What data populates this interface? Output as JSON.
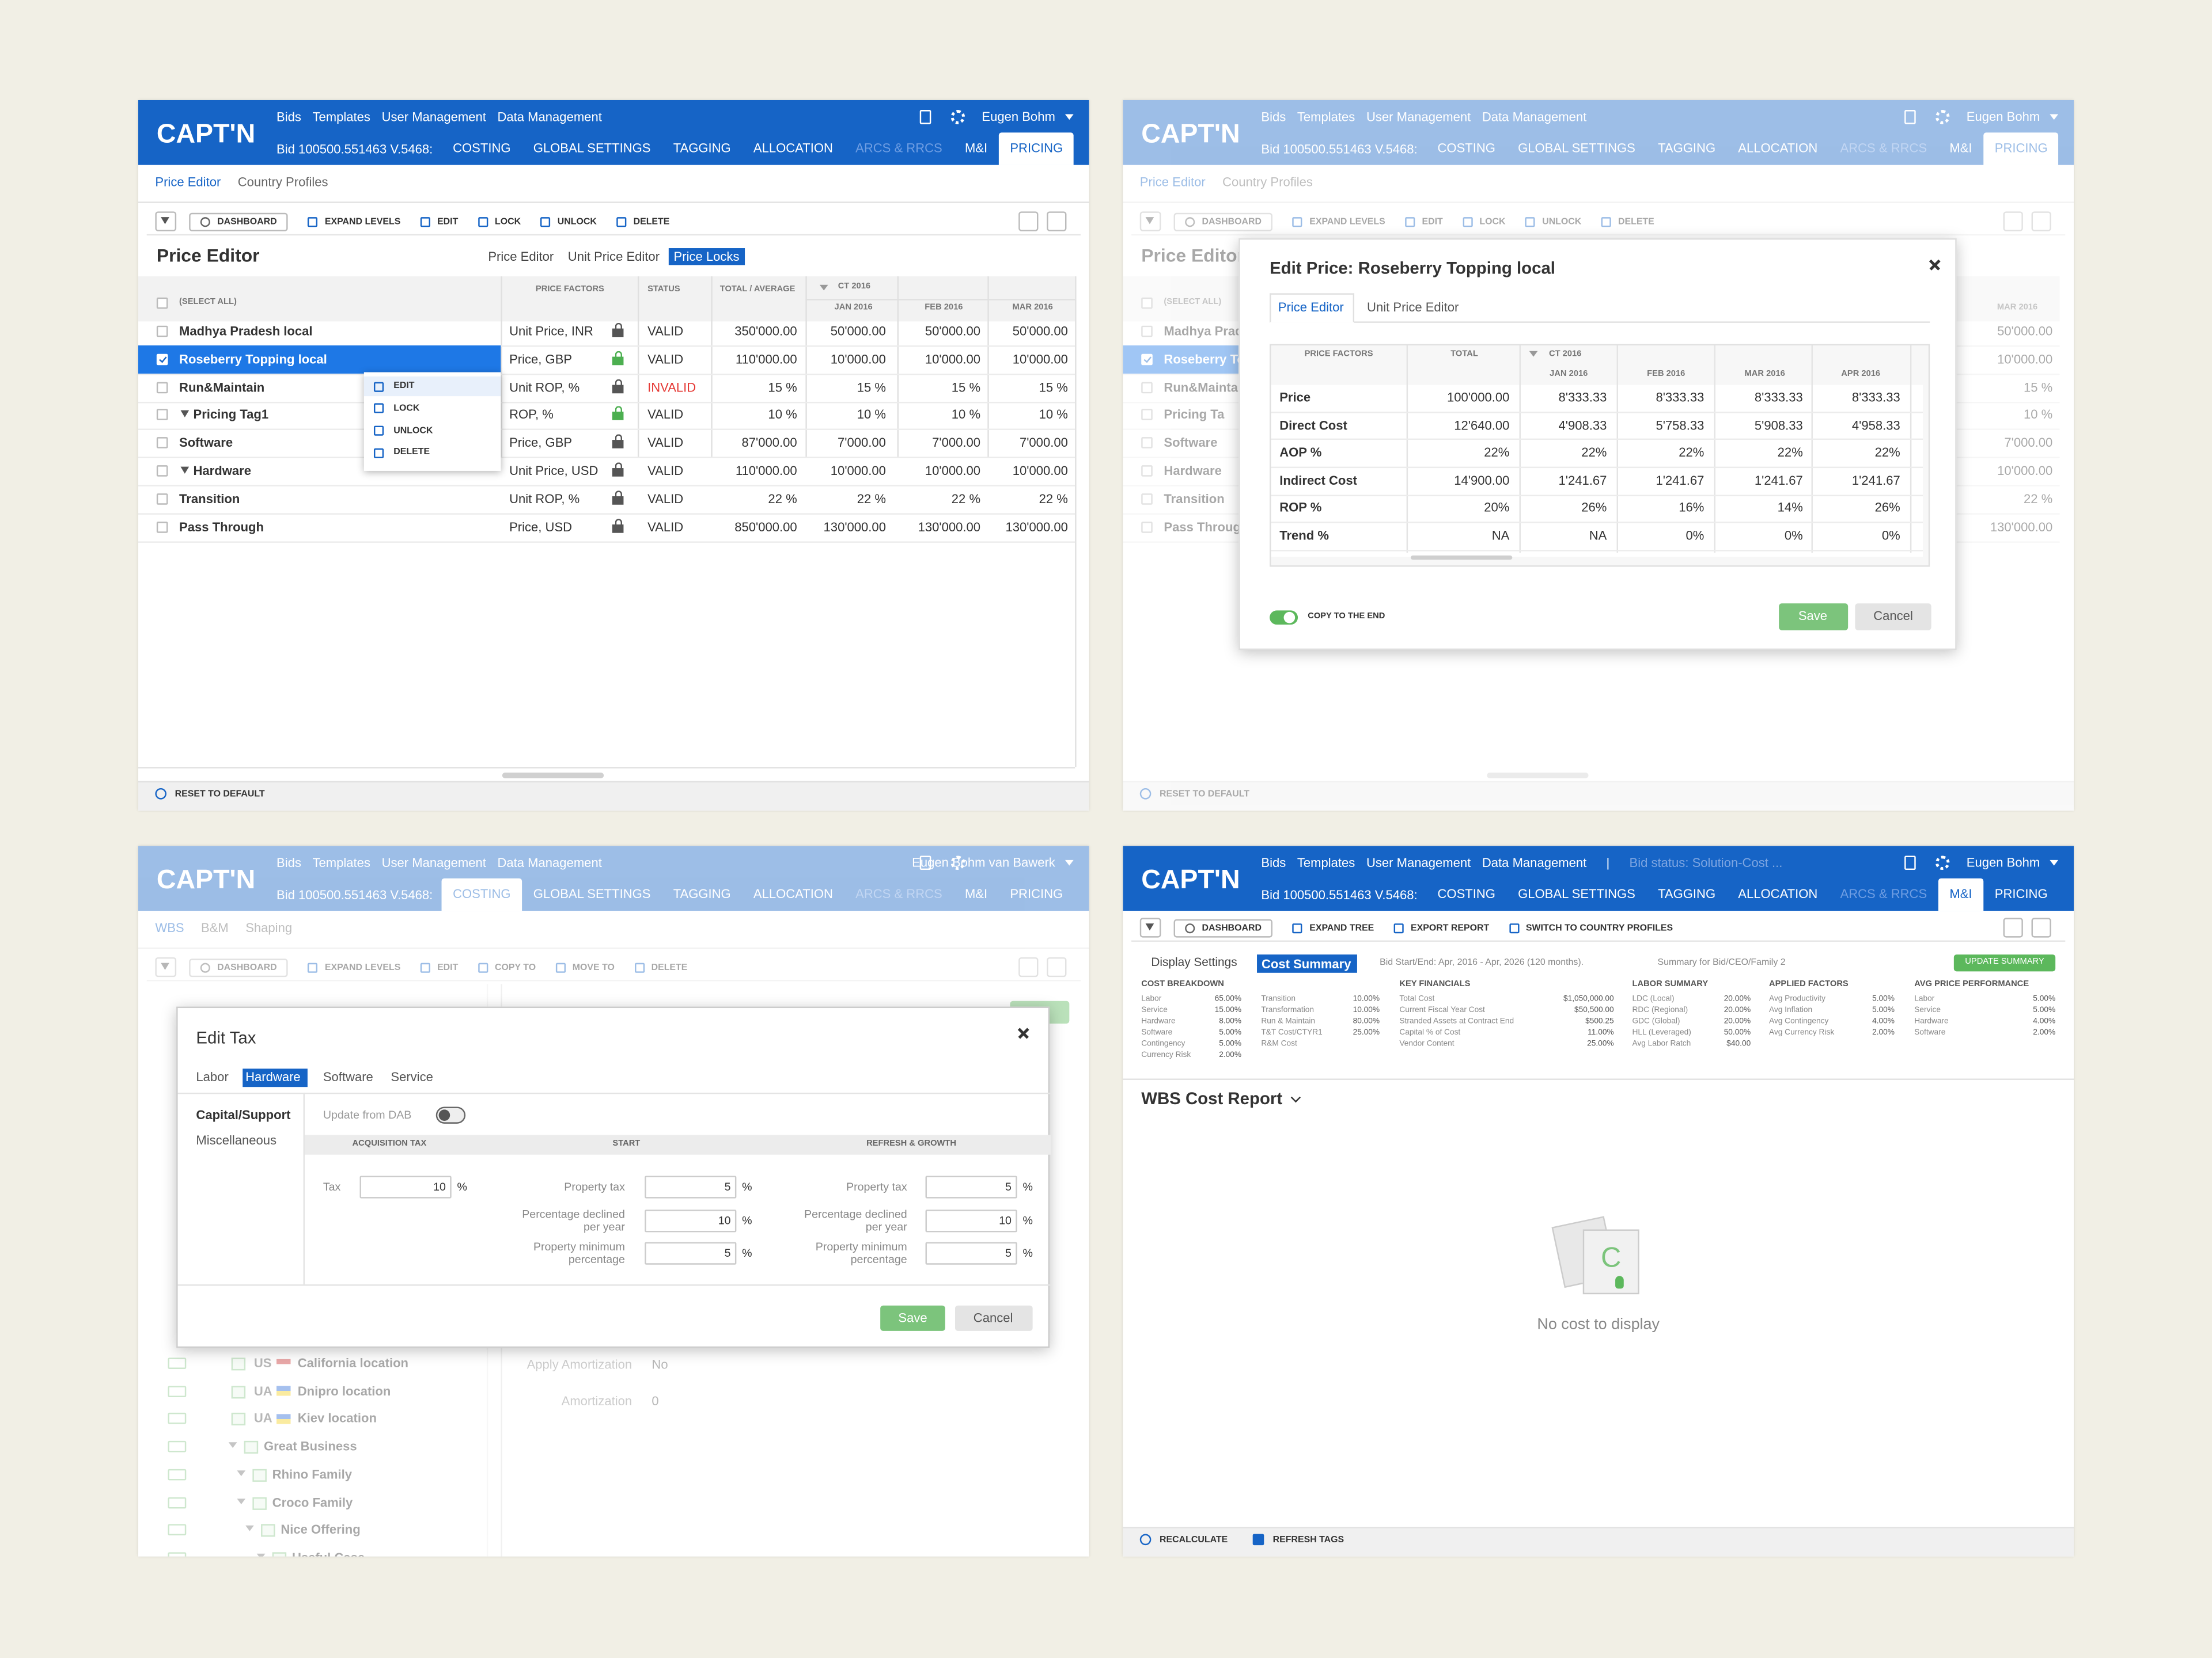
{
  "panels": [
    {
      "logo": "CAPT'N",
      "nav": [
        "Bids",
        "Templates",
        "User Management",
        "Data Management"
      ],
      "user": "Eugen Bohm",
      "bid": "Bid 100500.551463 V.5468:",
      "tabs": [
        "COSTING",
        "GLOBAL SETTINGS",
        "TAGGING",
        "ALLOCATION",
        "ARCS & RRCS",
        "M&I",
        "PRICING"
      ],
      "active_tab": 6,
      "subtabs": [
        "Price Editor",
        "Country Profiles"
      ],
      "toolbar": [
        "DASHBOARD",
        "EXPAND LEVELS",
        "EDIT",
        "LOCK",
        "UNLOCK",
        "DELETE"
      ],
      "title": "Price Editor",
      "view_tabs": [
        "Price Editor",
        "Unit Price Editor",
        "Price Locks"
      ],
      "active_view": 2,
      "table": {
        "select_all": "(SELECT ALL)",
        "headers": [
          "PRICE FACTORS",
          "STATUS",
          "TOTAL / AVERAGE"
        ],
        "period": "CT 2016",
        "months": [
          "JAN 2016",
          "FEB 2016",
          "MAR 2016"
        ],
        "selected_row": 1,
        "rows": [
          {
            "name": "Madhya Pradesh local",
            "factors": "Unit Price, INR",
            "status": "VALID",
            "total": "350'000.00",
            "months": [
              "50'000.00",
              "50'000.00",
              "50'000.00"
            ]
          },
          {
            "name": "Roseberry Topping local",
            "factors": "Price, GBP",
            "status": "VALID",
            "total": "110'000.00",
            "months": [
              "10'000.00",
              "10'000.00",
              "10'000.00"
            ],
            "lock_color": "#4caf50"
          },
          {
            "name": "Run&Maintain",
            "factors": "Unit ROP, %",
            "status": "INVALID",
            "invalid": true,
            "total": "15 %",
            "months": [
              "15 %",
              "15 %",
              "15 %"
            ]
          },
          {
            "name": "Pricing Tag1",
            "group": true,
            "factors": "ROP, %",
            "status": "VALID",
            "total": "10 %",
            "months": [
              "10 %",
              "10 %",
              "10 %"
            ],
            "lock_color": "#4caf50"
          },
          {
            "name": "Software",
            "factors": "Price, GBP",
            "status": "VALID",
            "total": "87'000.00",
            "months": [
              "7'000.00",
              "7'000.00",
              "7'000.00"
            ]
          },
          {
            "name": "Hardware",
            "group": true,
            "factors": "Unit Price, USD",
            "status": "VALID",
            "total": "110'000.00",
            "months": [
              "10'000.00",
              "10'000.00",
              "10'000.00"
            ]
          },
          {
            "name": "Transition",
            "factors": "Unit ROP, %",
            "status": "VALID",
            "total": "22 %",
            "months": [
              "22 %",
              "22 %",
              "22 %"
            ]
          },
          {
            "name": "Pass Through",
            "factors": "Price, USD",
            "status": "VALID",
            "total": "850'000.00",
            "months": [
              "130'000.00",
              "130'000.00",
              "130'000.00"
            ]
          }
        ]
      },
      "context_menu": [
        "EDIT",
        "LOCK",
        "UNLOCK",
        "DELETE"
      ],
      "footer": [
        "RESET TO DEFAULT"
      ]
    },
    {
      "logo": "CAPT'N",
      "nav": [
        "Bids",
        "Templates",
        "User Management",
        "Data Management"
      ],
      "user": "Eugen Bohm",
      "bid": "Bid 100500.551463 V.5468:",
      "tabs": [
        "COSTING",
        "GLOBAL SETTINGS",
        "TAGGING",
        "ALLOCATION",
        "ARCS & RRCS",
        "M&I",
        "PRICING"
      ],
      "active_tab": 6,
      "subtabs": [
        "Price Editor",
        "Country Profiles"
      ],
      "toolbar": [
        "DASHBOARD",
        "EXPAND LEVELS",
        "EDIT",
        "LOCK",
        "UNLOCK",
        "DELETE"
      ],
      "title": "Price Editor",
      "select_all": "(SELECT ALL)",
      "bg_month": "MAR 2016",
      "bg_rows": [
        "Madhya Prad",
        "Roseberry To",
        "Run&Maintain",
        "Pricing Ta",
        "Software",
        "Hardware",
        "Transition",
        "Pass Through"
      ],
      "bg_values": [
        "50'000.00",
        "10'000.00",
        "15 %",
        "10 %",
        "7'000.00",
        "10'000.00",
        "22 %",
        "130'000.00"
      ],
      "footer": [
        "RESET TO DEFAULT"
      ],
      "modal": {
        "title": "Edit Price: Roseberry Topping local",
        "tabs": [
          "Price Editor",
          "Unit Price Editor"
        ],
        "headers": [
          "PRICE FACTORS",
          "TOTAL"
        ],
        "period": "CT 2016",
        "months": [
          "JAN 2016",
          "FEB 2016",
          "MAR 2016",
          "APR 2016"
        ],
        "rows": [
          {
            "name": "Price",
            "values": [
              "100'000.00",
              "8'333.33",
              "8'333.33",
              "8'333.33",
              "8'333.33"
            ]
          },
          {
            "name": "Direct Cost",
            "values": [
              "12'640.00",
              "4'908.33",
              "5'758.33",
              "5'908.33",
              "4'958.33"
            ]
          },
          {
            "name": "AOP %",
            "values": [
              "22%",
              "22%",
              "22%",
              "22%",
              "22%"
            ]
          },
          {
            "name": "Indirect Cost",
            "values": [
              "14'900.00",
              "1'241.67",
              "1'241.67",
              "1'241.67",
              "1'241.67"
            ]
          },
          {
            "name": "ROP %",
            "values": [
              "20%",
              "26%",
              "16%",
              "14%",
              "26%"
            ]
          },
          {
            "name": "Trend %",
            "values": [
              "NA",
              "NA",
              "0%",
              "0%",
              "0%"
            ]
          }
        ],
        "toggle": "COPY TO THE END",
        "save": "Save",
        "cancel": "Cancel"
      }
    },
    {
      "logo": "CAPT'N",
      "nav": [
        "Bids",
        "Templates",
        "User Management",
        "Data Management"
      ],
      "user": "Eugen Bohm van Bawerk",
      "bid": "Bid 100500.551463 V.5468:",
      "tabs": [
        "COSTING",
        "GLOBAL SETTINGS",
        "TAGGING",
        "ALLOCATION",
        "ARCS & RRCS",
        "M&I",
        "PRICING"
      ],
      "active_tab": 0,
      "subtabs": [
        "WBS",
        "B&M",
        "Shaping"
      ],
      "toolbar": [
        "DASHBOARD",
        "EXPAND LEVELS",
        "EDIT",
        "COPY TO",
        "MOVE TO",
        "DELETE"
      ],
      "tree": [
        {
          "code": "US",
          "name": "California location"
        },
        {
          "code": "UA",
          "name": "Dnipro location"
        },
        {
          "code": "UA",
          "name": "Kiev location"
        },
        {
          "name": "Great Business"
        },
        {
          "name": "Rhino Family"
        },
        {
          "name": "Croco Family"
        },
        {
          "name": "Nice Offering"
        },
        {
          "name": "Useful Case"
        }
      ],
      "fields": [
        [
          "Apply Amortization",
          "No"
        ],
        [
          "Amortization",
          "0"
        ]
      ],
      "modal": {
        "title": "Edit Tax",
        "tabs": [
          "Labor",
          "Hardware",
          "Software",
          "Service"
        ],
        "active_tab": 1,
        "side": [
          "Capital/Support",
          "Miscellaneous"
        ],
        "update": "Update from DAB",
        "sections": [
          "ACQUISITION TAX",
          "START",
          "REFRESH & GROWTH"
        ],
        "unit": "%",
        "acquisition": [
          {
            "label": "Tax",
            "value": "10"
          }
        ],
        "start": [
          {
            "label": "Property tax",
            "value": "5"
          },
          {
            "label": "Percentage declined per year",
            "value": "10"
          },
          {
            "label": "Property minimum percentage",
            "value": "5"
          }
        ],
        "refresh": [
          {
            "label": "Property tax",
            "value": "5"
          },
          {
            "label": "Percentage declined per year",
            "value": "10"
          },
          {
            "label": "Property minimum percentage",
            "value": "5"
          }
        ],
        "save": "Save",
        "cancel": "Cancel"
      }
    },
    {
      "logo": "CAPT'N",
      "nav": [
        "Bids",
        "Templates",
        "User Management",
        "Data Management"
      ],
      "separator": "|",
      "status": "Bid status: Solution-Cost ...",
      "user": "Eugen Bohm",
      "bid": "Bid 100500.551463 V.5468:",
      "tabs": [
        "COSTING",
        "GLOBAL SETTINGS",
        "TAGGING",
        "ALLOCATION",
        "ARCS & RRCS",
        "M&I",
        "PRICING"
      ],
      "active_tab": 5,
      "toolbar": [
        "DASHBOARD",
        "EXPAND TREE",
        "EXPORT REPORT",
        "SWITCH TO COUNTRY PROFILES"
      ],
      "settings": "Display Settings",
      "summary_tab": "Cost Summary",
      "bid_dates": "Bid Start/End: Apr, 2016 - Apr, 2026 (120 months).",
      "summary_for": "Summary for Bid/CEO/Family 2",
      "update": "UPDATE SUMMARY",
      "groups": [
        {
          "title": "COST BREAKDOWN",
          "items": [
            [
              "Labor",
              "65.00%"
            ],
            [
              "Service",
              "15.00%"
            ],
            [
              "Hardware",
              "8.00%"
            ],
            [
              "Software",
              "5.00%"
            ],
            [
              "Contingency",
              "5.00%"
            ],
            [
              "Currency Risk",
              "2.00%"
            ]
          ]
        },
        {
          "items": [
            [
              "Transition",
              "10.00%"
            ],
            [
              "Transformation",
              "10.00%"
            ],
            [
              "Run & Maintain",
              "80.00%"
            ],
            [
              "T&T Cost/CTYR1",
              "25.00%"
            ],
            [
              "R&M Cost"
            ]
          ]
        },
        {
          "title": "KEY FINANCIALS",
          "items": [
            [
              "Total Cost",
              "$1,050,000.00"
            ],
            [
              "Current Fiscal Year Cost",
              "$50,500.00"
            ],
            [
              "Stranded Assets at Contract End",
              "$500.25"
            ],
            [
              "Capital % of Cost",
              "11.00%"
            ],
            [
              "Vendor Content",
              "25.00%"
            ]
          ]
        },
        {
          "title": "LABOR SUMMARY",
          "items": [
            [
              "LDC (Local)",
              "20.00%"
            ],
            [
              "RDC (Regional)",
              "20.00%"
            ],
            [
              "GDC (Global)",
              "20.00%"
            ],
            [
              "HLL (Leveraged)",
              "50.00%"
            ],
            [
              "Avg Labor Ratch",
              "$40.00"
            ]
          ]
        },
        {
          "title": "APPLIED FACTORS",
          "items": [
            [
              "Avg Productivity",
              "5.00%"
            ],
            [
              "Avg Inflation",
              "5.00%"
            ],
            [
              "Avg Contingency",
              "4.00%"
            ],
            [
              "Avg Currency Risk",
              "2.00%"
            ]
          ]
        },
        {
          "title": "AVG PRICE PERFORMANCE",
          "items": [
            [
              "Labor",
              "5.00%"
            ],
            [
              "Service",
              "5.00%"
            ],
            [
              "Hardware",
              "4.00%"
            ],
            [
              "Software",
              "2.00%"
            ]
          ]
        }
      ],
      "report_title": "WBS Cost Report",
      "empty_icon": "C",
      "empty": "No cost to display",
      "footer": [
        "RECALCULATE",
        "REFRESH TAGS"
      ]
    }
  ]
}
